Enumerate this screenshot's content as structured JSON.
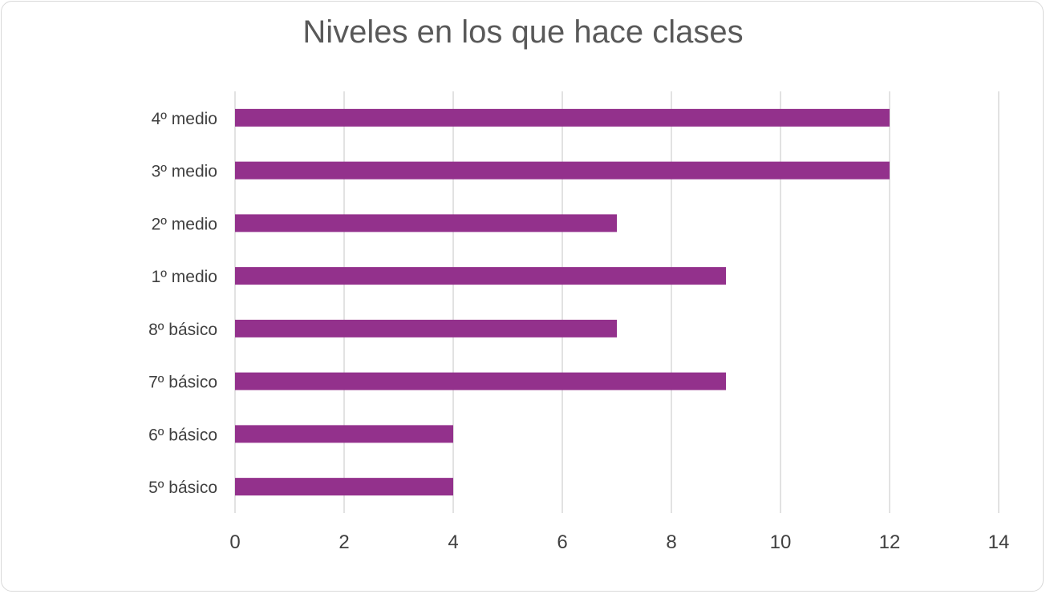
{
  "chart_data": {
    "type": "bar",
    "orientation": "horizontal",
    "title": "Niveles en los que hace clases",
    "xlabel": "",
    "ylabel": "",
    "categories": [
      "5º básico",
      "6º básico",
      "7º básico",
      "8º básico",
      "1º medio",
      "2º medio",
      "3º medio",
      "4º medio"
    ],
    "values": [
      4,
      4,
      9,
      7,
      9,
      7,
      12,
      12
    ],
    "xlim": [
      0,
      14
    ],
    "xticks": [
      "0",
      "2",
      "4",
      "6",
      "8",
      "10",
      "12",
      "14"
    ],
    "grid": "vertical",
    "legend": "none",
    "bar_color": "#93318c",
    "grid_color": "#d9d9d9"
  }
}
